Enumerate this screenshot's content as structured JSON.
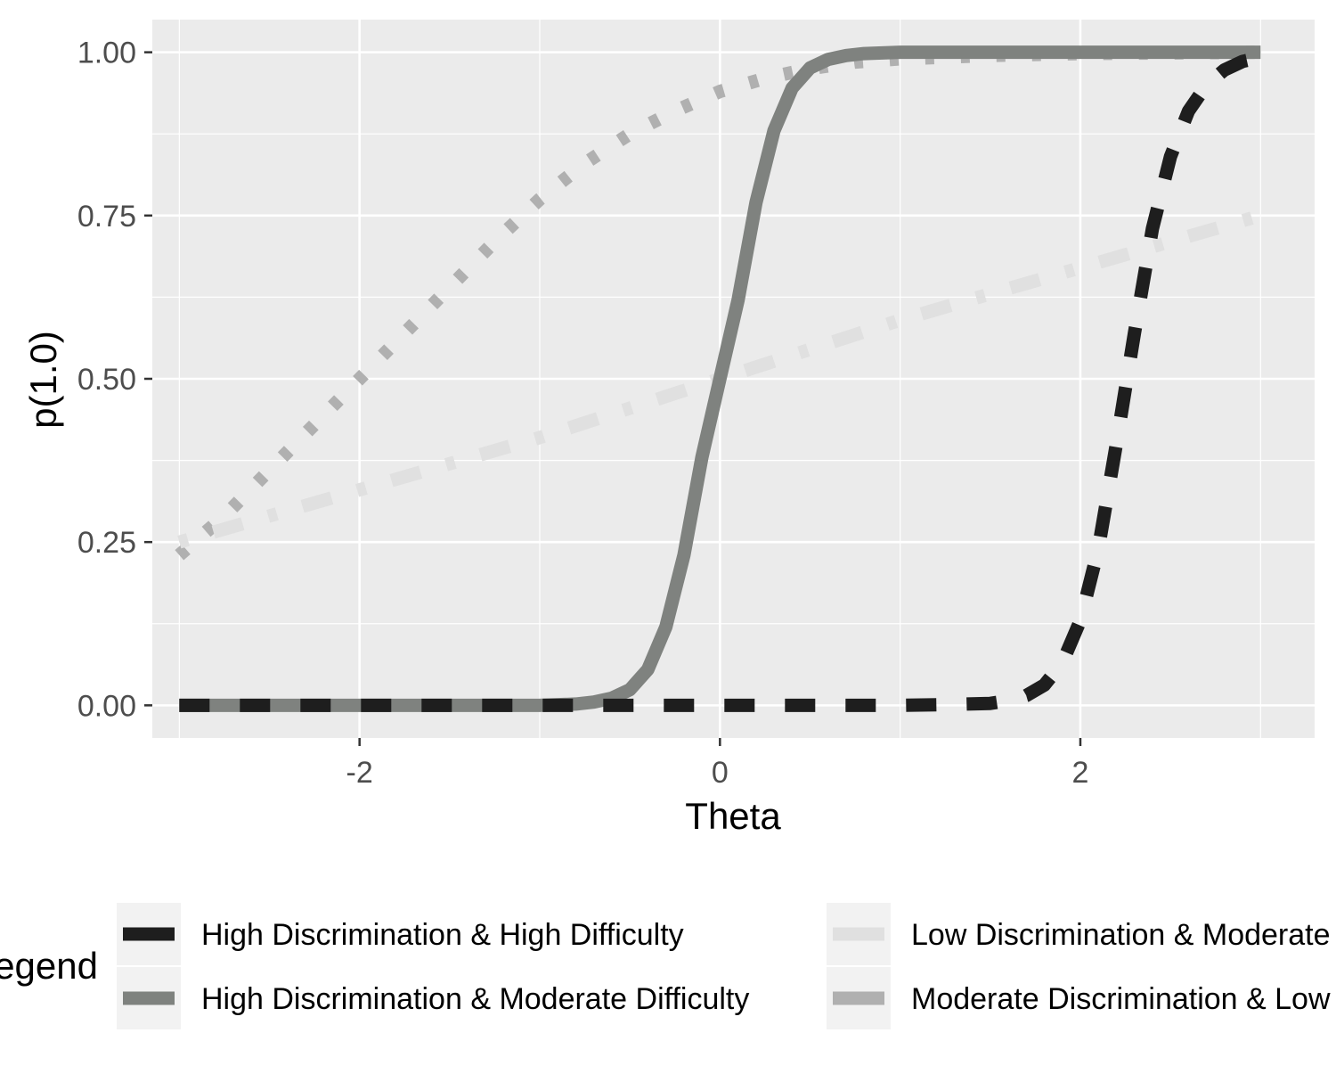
{
  "chart_data": {
    "type": "line",
    "title": "",
    "xlabel": "Theta",
    "ylabel": "p(1.0)",
    "xlim": [
      -3.15,
      3.3
    ],
    "ylim": [
      -0.05,
      1.05
    ],
    "x_ticks": [
      -2,
      0,
      2
    ],
    "x_tick_labels": [
      "-2",
      "0",
      "2"
    ],
    "y_ticks": [
      0,
      0.25,
      0.5,
      0.75,
      1.0
    ],
    "y_tick_labels": [
      "0.00",
      "0.25",
      "0.50",
      "0.75",
      "1.00"
    ],
    "grid": true,
    "panel_background": "#EBEBEB",
    "legend_position": "bottom",
    "legend_title": "Legend",
    "series": [
      {
        "name": "High Discrimination & High Difficulty",
        "color": "#1E1E1E",
        "linestyle": "dashed",
        "x": [
          -3,
          -2.5,
          -2,
          -1.5,
          -1,
          -0.5,
          0,
          0.5,
          1,
          1.25,
          1.5,
          1.6,
          1.7,
          1.8,
          1.9,
          2,
          2.1,
          2.2,
          2.3,
          2.4,
          2.5,
          2.6,
          2.7,
          2.8,
          2.9,
          3
        ],
        "values": [
          0,
          0,
          0,
          0,
          0,
          0,
          0,
          0,
          0,
          0.001,
          0.003,
          0.007,
          0.015,
          0.031,
          0.065,
          0.13,
          0.24,
          0.4,
          0.57,
          0.73,
          0.84,
          0.91,
          0.95,
          0.973,
          0.986,
          0.992
        ]
      },
      {
        "name": "High Discrimination & Moderate Difficulty",
        "color": "#7F827F",
        "linestyle": "solid",
        "x": [
          -3,
          -1,
          -0.8,
          -0.7,
          -0.6,
          -0.5,
          -0.4,
          -0.3,
          -0.2,
          -0.1,
          0,
          0.1,
          0.2,
          0.3,
          0.4,
          0.5,
          0.6,
          0.7,
          0.8,
          1,
          1.5,
          3
        ],
        "values": [
          0,
          0,
          0.002,
          0.005,
          0.011,
          0.024,
          0.055,
          0.12,
          0.23,
          0.38,
          0.5,
          0.62,
          0.77,
          0.88,
          0.945,
          0.976,
          0.989,
          0.995,
          0.998,
          1.0,
          1.0,
          1.0
        ]
      },
      {
        "name": "Low Discrimination & Moderate Difficulty",
        "color": "#E0E0E0",
        "linestyle": "dotdash",
        "x": [
          -3,
          -2.5,
          -2,
          -1.5,
          -1,
          -0.5,
          0,
          0.5,
          1,
          1.5,
          2,
          2.5,
          3
        ],
        "values": [
          0.25,
          0.29,
          0.33,
          0.37,
          0.41,
          0.455,
          0.5,
          0.545,
          0.59,
          0.63,
          0.67,
          0.71,
          0.75
        ]
      },
      {
        "name": "Moderate Discrimination & Low Difficulty",
        "color": "#B0B0B0",
        "linestyle": "dotted",
        "x": [
          -3,
          -2.75,
          -2.5,
          -2.25,
          -2,
          -1.75,
          -1.5,
          -1.25,
          -1,
          -0.75,
          -0.5,
          -0.25,
          0,
          0.25,
          0.5,
          0.75,
          1,
          1.5,
          2,
          2.5,
          3
        ],
        "values": [
          0.23,
          0.29,
          0.36,
          0.43,
          0.5,
          0.57,
          0.64,
          0.71,
          0.775,
          0.83,
          0.875,
          0.91,
          0.94,
          0.96,
          0.975,
          0.985,
          0.99,
          0.995,
          0.998,
          0.999,
          1.0
        ]
      }
    ]
  }
}
